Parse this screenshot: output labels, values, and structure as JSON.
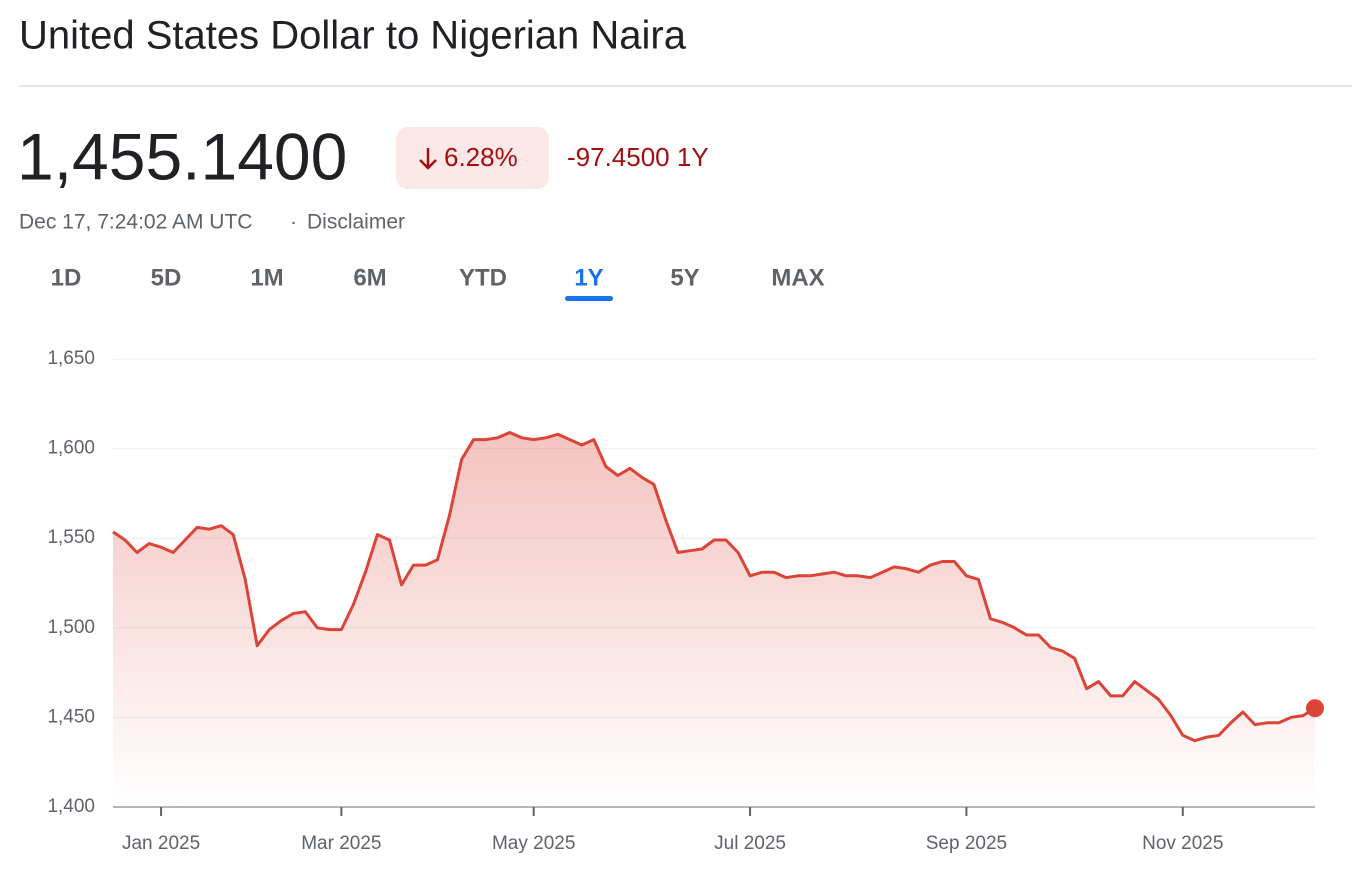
{
  "header": {
    "title": "United States Dollar to Nigerian Naira",
    "price": "1,455.1400",
    "change_percent": "6.28%",
    "change": "-97.4500 1Y",
    "timestamp": "Dec 17, 7:24:02 AM UTC",
    "disclaimer": "Disclaimer"
  },
  "tabs": {
    "items": [
      "1D",
      "5D",
      "1M",
      "6M",
      "YTD",
      "1Y",
      "5Y",
      "MAX"
    ],
    "selected": 5
  },
  "chart_data": {
    "type": "line",
    "categories": [
      null,
      null,
      null,
      null,
      "Jan 2025",
      null,
      null,
      null,
      null,
      null,
      null,
      null,
      null,
      null,
      null,
      null,
      null,
      null,
      null,
      "Mar 2025",
      null,
      null,
      null,
      null,
      null,
      null,
      null,
      null,
      null,
      null,
      null,
      null,
      null,
      null,
      null,
      "May 2025",
      null,
      null,
      null,
      null,
      null,
      null,
      null,
      null,
      null,
      null,
      null,
      null,
      null,
      null,
      null,
      null,
      null,
      "Jul 2025",
      null,
      null,
      null,
      null,
      null,
      null,
      null,
      null,
      null,
      null,
      null,
      null,
      null,
      null,
      null,
      null,
      null,
      "Sep 2025",
      null,
      null,
      null,
      null,
      null,
      null,
      null,
      null,
      null,
      null,
      null,
      null,
      null,
      null,
      null,
      null,
      null,
      "Nov 2025",
      null,
      null,
      null,
      null,
      null,
      null,
      null,
      null,
      null,
      null,
      null
    ],
    "series": [
      {
        "name": "USD/NGN",
        "color": "#db4437",
        "values": [
          1553.5,
          1549,
          1542,
          1547,
          1545,
          1542,
          1549,
          1556,
          1555,
          1557,
          1552,
          1527,
          1490,
          1499,
          1504,
          1508,
          1509,
          1500,
          1499,
          1499,
          1513,
          1531,
          1552,
          1549,
          1524,
          1535,
          1535,
          1538,
          1563,
          1594,
          1605,
          1605,
          1606,
          1609,
          1606,
          1605,
          1606,
          1608,
          1605,
          1602,
          1605,
          1590,
          1585,
          1589,
          1584,
          1580,
          1560,
          1542,
          1543,
          1544,
          1549,
          1549,
          1542,
          1529,
          1531,
          1531,
          1528,
          1529,
          1529,
          1530,
          1531,
          1529,
          1529,
          1528,
          1531,
          1534,
          1533,
          1531,
          1535,
          1537,
          1537,
          1529,
          1527,
          1505,
          1503,
          1500,
          1496,
          1496,
          1489,
          1487,
          1483,
          1466,
          1470,
          1462,
          1462,
          1470,
          1465,
          1460,
          1451,
          1440,
          1437,
          1439,
          1440,
          1447,
          1453,
          1446,
          1447,
          1447,
          1450,
          1451,
          1455.14
        ]
      }
    ],
    "ylim": [
      1400,
      1650
    ],
    "yticks": [
      {
        "value": 1400,
        "label": "1,400"
      },
      {
        "value": 1450,
        "label": "1,450"
      },
      {
        "value": 1500,
        "label": "1,500"
      },
      {
        "value": 1550,
        "label": "1,550"
      },
      {
        "value": 1600,
        "label": "1,600"
      },
      {
        "value": 1650,
        "label": "1,650"
      }
    ],
    "grid": true
  }
}
